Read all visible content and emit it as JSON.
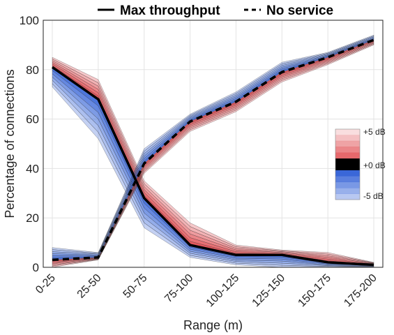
{
  "chart_data": {
    "type": "line",
    "xlabel": "Range (m)",
    "ylabel": "Percentage of connections",
    "categories": [
      "0-25",
      "25-50",
      "50-75",
      "75-100",
      "100-125",
      "125-150",
      "150-175",
      "175-200"
    ],
    "ylim": [
      0,
      100
    ],
    "yticks": [
      0,
      20,
      40,
      60,
      80,
      100
    ],
    "grid": true,
    "legend": {
      "placement": "top",
      "entries": [
        {
          "label": "Max throughput",
          "style": "solid"
        },
        {
          "label": "No service",
          "style": "dashed"
        }
      ]
    },
    "colorbar": {
      "labels": [
        "+5 dB",
        "+0 dB",
        "-5 dB"
      ],
      "range_db": [
        -5,
        5
      ],
      "positive_color": "#e0474c",
      "negative_color": "#3a67d8"
    },
    "series": [
      {
        "name": "Max throughput",
        "style": "solid",
        "values_0db": [
          81,
          68,
          28,
          9,
          5,
          5,
          2,
          1
        ],
        "values_plus5db": [
          85,
          76,
          35,
          18,
          9,
          7,
          6,
          2
        ],
        "values_minus5db": [
          73,
          52,
          16,
          4,
          1,
          0,
          0,
          0
        ]
      },
      {
        "name": "No service",
        "style": "dashed",
        "values_0db": [
          3,
          4,
          42,
          59,
          67,
          79,
          85,
          92
        ],
        "values_plus5db": [
          0,
          3,
          38,
          55,
          63,
          75,
          82,
          90
        ],
        "values_minus5db": [
          8,
          6,
          48,
          62,
          71,
          83,
          87,
          94
        ]
      }
    ]
  }
}
